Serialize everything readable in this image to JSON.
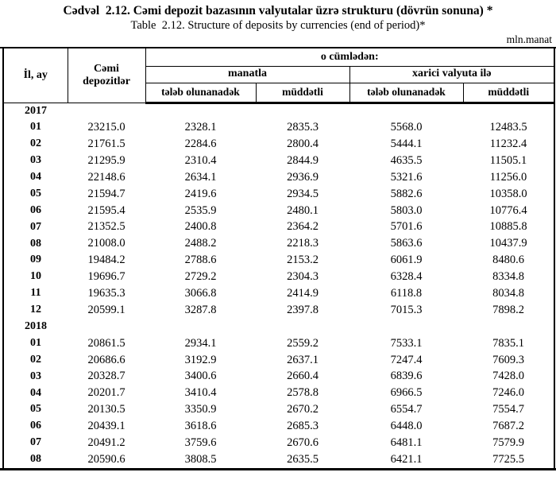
{
  "page": {
    "title_az": "Cədvəl  2.12. Cəmi depozit bazasının valyutalar üzrə strukturu (dövrün sonuna) *",
    "title_en": "Table  2.12. Structure of deposits by currencies (end of period)*",
    "unit_label": "mln.manat"
  },
  "table": {
    "headers": {
      "year_month": "İl, ay",
      "total": "Cəmi depozitlər",
      "including": "o cümlədən:",
      "in_manat": "manatla",
      "in_foreign": "xarici valyuta ilə",
      "demand": "tələb olunanadək",
      "term": "müddətli"
    },
    "sections": [
      {
        "year": "2017",
        "rows": [
          [
            "01",
            "23215.0",
            "2328.1",
            "2835.3",
            "5568.0",
            "12483.5"
          ],
          [
            "02",
            "21761.5",
            "2284.6",
            "2800.4",
            "5444.1",
            "11232.4"
          ],
          [
            "03",
            "21295.9",
            "2310.4",
            "2844.9",
            "4635.5",
            "11505.1"
          ],
          [
            "04",
            "22148.6",
            "2634.1",
            "2936.9",
            "5321.6",
            "11256.0"
          ],
          [
            "05",
            "21594.7",
            "2419.6",
            "2934.5",
            "5882.6",
            "10358.0"
          ],
          [
            "06",
            "21595.4",
            "2535.9",
            "2480.1",
            "5803.0",
            "10776.4"
          ],
          [
            "07",
            "21352.5",
            "2400.8",
            "2364.2",
            "5701.6",
            "10885.8"
          ],
          [
            "08",
            "21008.0",
            "2488.2",
            "2218.3",
            "5863.6",
            "10437.9"
          ],
          [
            "09",
            "19484.2",
            "2788.6",
            "2153.2",
            "6061.9",
            "8480.6"
          ],
          [
            "10",
            "19696.7",
            "2729.2",
            "2304.3",
            "6328.4",
            "8334.8"
          ],
          [
            "11",
            "19635.3",
            "3066.8",
            "2414.9",
            "6118.8",
            "8034.8"
          ],
          [
            "12",
            "20599.1",
            "3287.8",
            "2397.8",
            "7015.3",
            "7898.2"
          ]
        ]
      },
      {
        "year": "2018",
        "rows": [
          [
            "01",
            "20861.5",
            "2934.1",
            "2559.2",
            "7533.1",
            "7835.1"
          ],
          [
            "02",
            "20686.6",
            "3192.9",
            "2637.1",
            "7247.4",
            "7609.3"
          ],
          [
            "03",
            "20328.7",
            "3400.6",
            "2660.4",
            "6839.6",
            "7428.0"
          ],
          [
            "04",
            "20201.7",
            "3410.4",
            "2578.8",
            "6966.5",
            "7246.0"
          ],
          [
            "05",
            "20130.5",
            "3350.9",
            "2670.2",
            "6554.7",
            "7554.7"
          ],
          [
            "06",
            "20439.1",
            "3618.6",
            "2685.3",
            "6448.0",
            "7687.2"
          ],
          [
            "07",
            "20491.2",
            "3759.6",
            "2670.6",
            "6481.1",
            "7579.9"
          ],
          [
            "08",
            "20590.6",
            "3808.5",
            "2635.5",
            "6421.1",
            "7725.5"
          ]
        ]
      }
    ]
  }
}
